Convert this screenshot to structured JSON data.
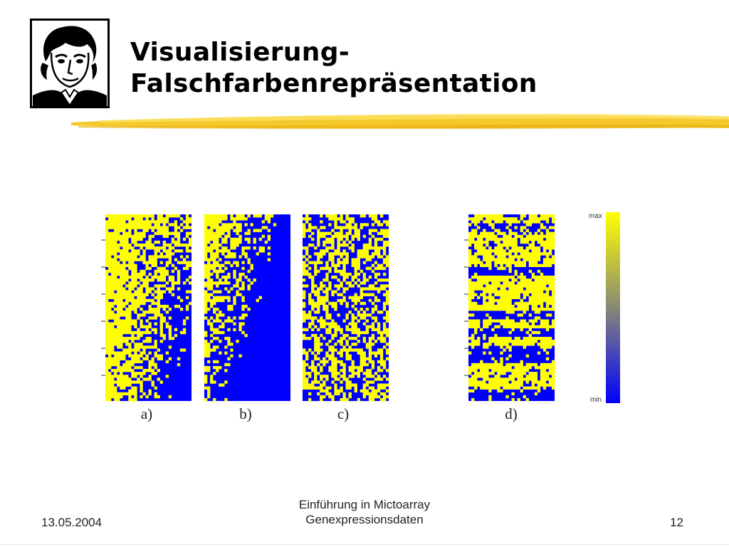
{
  "slide": {
    "title_line1": "Visualisierung-",
    "title_line2": "Falschfarbenrepräsentation"
  },
  "figure": {
    "panels": [
      {
        "label": "a)",
        "pattern": "gradient-columns"
      },
      {
        "label": "b)",
        "pattern": "diagonal-gradient"
      },
      {
        "label": "c)",
        "pattern": "random"
      },
      {
        "label": "d)",
        "pattern": "row-blocks"
      }
    ],
    "colorscale": {
      "max_label": "max",
      "min_label": "min",
      "max_color": "#ffff00",
      "min_color": "#0000ff"
    }
  },
  "footer": {
    "date": "13.05.2004",
    "center_line1": "Einführung in Mictoarray",
    "center_line2": "Genexpressionsdaten",
    "page": "12"
  },
  "colors": {
    "highlight": "#f2c21a",
    "heat_yellow": "#ffff00",
    "heat_blue": "#0000ff"
  },
  "icons": {
    "logo": "goethe-portrait-logo"
  }
}
